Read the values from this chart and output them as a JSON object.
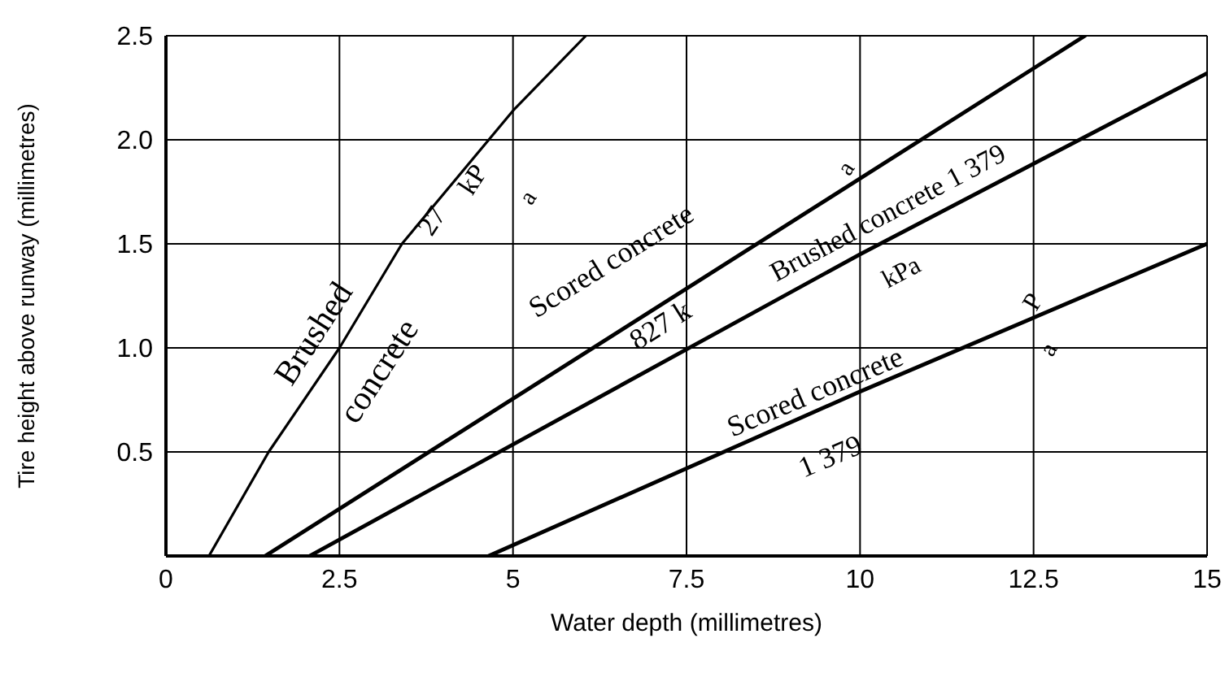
{
  "chart_data": {
    "type": "line",
    "xlabel": "Water depth (millimetres)",
    "ylabel": "Tire height above runway (millimetres)",
    "xlim": [
      0,
      15
    ],
    "xticks": [
      0,
      2.5,
      5,
      7.5,
      10,
      12.5,
      15
    ],
    "ylim": [
      0,
      2.5
    ],
    "yticks": [
      {
        "value": 0.5,
        "label": "0.5"
      },
      {
        "value": 1,
        "label": "1.0"
      },
      {
        "value": 1.5,
        "label": "1.5"
      },
      {
        "value": 2,
        "label": "2.0"
      },
      {
        "value": 2.5,
        "label": "2.5"
      }
    ],
    "grid": true,
    "marker": "none",
    "line_style": "solid",
    "series": [
      {
        "color": "#000000",
        "x": [
          0.62,
          1.48,
          2.5,
          3.4,
          5,
          6.05
        ],
        "values": [
          0,
          0.5,
          1.0,
          1.5,
          2.14,
          2.5
        ]
      },
      {
        "color": "#000000",
        "x": [
          1.43,
          13.24
        ],
        "values": [
          0,
          2.5
        ]
      },
      {
        "color": "#000000",
        "x": [
          2.07,
          10,
          15
        ],
        "values": [
          0,
          1.45,
          2.32
        ]
      },
      {
        "color": "#000000",
        "x": [
          4.65,
          10,
          15
        ],
        "values": [
          0,
          0.79,
          1.5
        ]
      }
    ],
    "annotations": [
      "Brushed",
      "concrete",
      "27",
      "kP",
      "a",
      "Scored concrete",
      "a",
      "827 k",
      "Brushed concrete 1 379",
      "kPa",
      "Scored concrete",
      "1 379",
      "P",
      "a"
    ]
  }
}
